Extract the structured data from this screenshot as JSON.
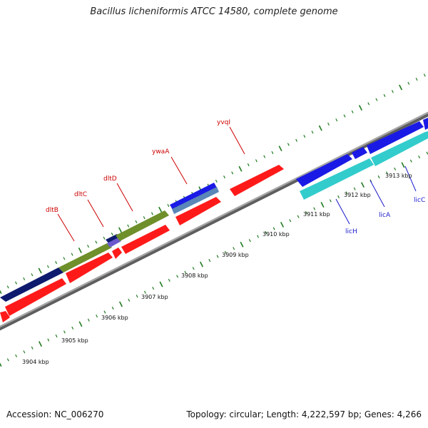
{
  "title": "Bacillus licheniformis ATCC 14580, complete genome",
  "footer": {
    "accession": "Accession: NC_006270",
    "summary": "Topology: circular; Length: 4,222,597 bp; Genes: 4,266"
  },
  "colors": {
    "backbone": "#8f8f8f",
    "tick": "#1f7a1f",
    "forward_label": "#cc0000",
    "reverse_label": "#1a1acc",
    "red_gene": "#ff1a1a",
    "navy_gene": "#0d1a6e",
    "olive_gene": "#6e8f2a",
    "blue_gene": "#1a1ae6",
    "steel_gene": "#5a86b8",
    "cyan_gene": "#33cccc",
    "purple_gene": "#6a5acd"
  },
  "scale_labels": [
    "3904 kbp",
    "3905 kbp",
    "3906 kbp",
    "3907 kbp",
    "3908 kbp",
    "3909 kbp",
    "3910 kbp",
    "3911 kbp",
    "3912 kbp",
    "3913 kbp"
  ],
  "gene_labels": [
    {
      "text": "dltB",
      "strand": "forward"
    },
    {
      "text": "dltC",
      "strand": "forward"
    },
    {
      "text": "dltD",
      "strand": "forward"
    },
    {
      "text": "ywaA",
      "strand": "forward"
    },
    {
      "text": "yvqI",
      "strand": "forward"
    },
    {
      "text": "licH",
      "strand": "reverse"
    },
    {
      "text": "licA",
      "strand": "reverse"
    },
    {
      "text": "licC",
      "strand": "reverse"
    }
  ]
}
